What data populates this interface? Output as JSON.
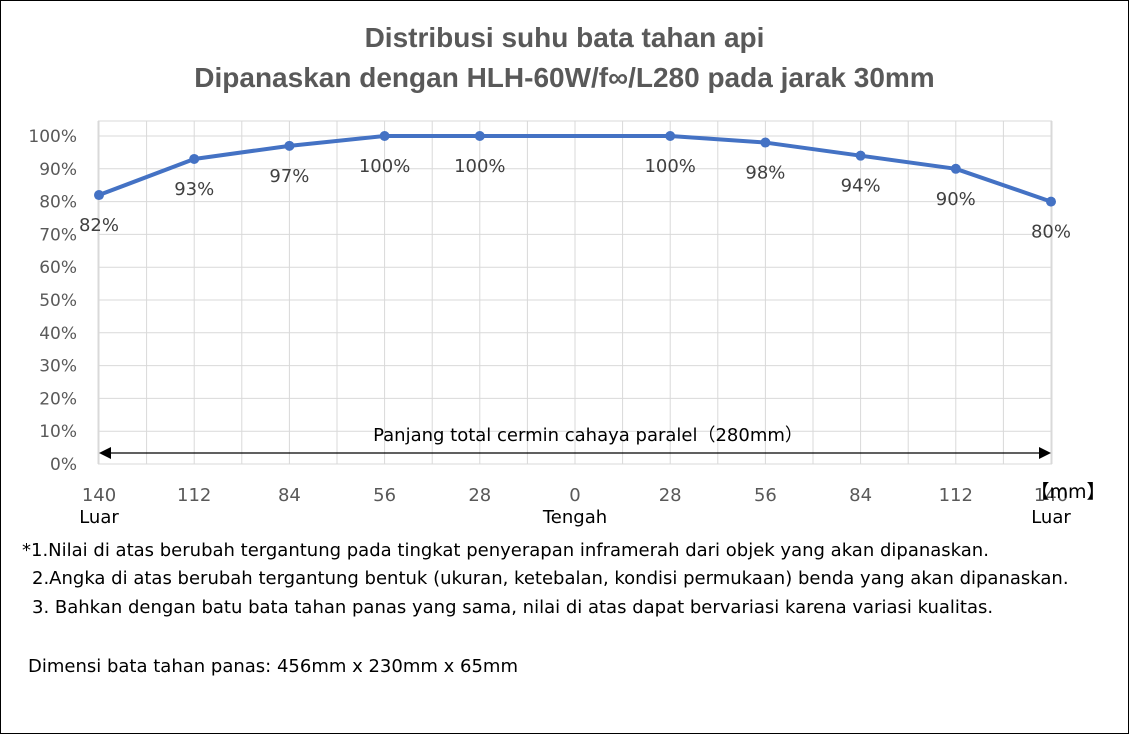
{
  "chart_data": {
    "type": "line",
    "title": "Distribusi suhu bata tahan api",
    "subtitle": "Dipanaskan dengan HLH-60W/f∞/L280 pada jarak 30mm",
    "x_ticks": [
      "140",
      "112",
      "84",
      "56",
      "28",
      "0",
      "28",
      "56",
      "84",
      "112",
      "140"
    ],
    "x_sublabels": [
      {
        "tick_index": 0,
        "text": "Luar"
      },
      {
        "tick_index": 5,
        "text": "Tengah"
      },
      {
        "tick_index": 10,
        "text": "Luar"
      }
    ],
    "x_unit": "【mm】",
    "y_ticks": [
      "0%",
      "10%",
      "20%",
      "30%",
      "40%",
      "50%",
      "60%",
      "70%",
      "80%",
      "90%",
      "100%"
    ],
    "ylim": [
      0,
      100
    ],
    "grid": true,
    "series": [
      {
        "x": [
          -140,
          -112,
          -84,
          -56,
          -28,
          28,
          56,
          84,
          112,
          140
        ],
        "values": [
          82,
          93,
          97,
          100,
          100,
          100,
          98,
          94,
          90,
          80
        ],
        "labels": [
          "82%",
          "93%",
          "97%",
          "100%",
          "100%",
          "100%",
          "98%",
          "94%",
          "90%",
          "80%"
        ],
        "color": "#4472C4"
      }
    ],
    "annotation": "Panjang total cermin cahaya paralel（280mm）"
  },
  "notes": [
    "*1.Nilai di atas berubah tergantung pada tingkat penyerapan inframerah dari objek yang akan dipanaskan.",
    "2.Angka di atas berubah tergantung bentuk (ukuran, ketebalan, kondisi permukaan) benda yang akan dipanaskan.",
    "3. Bahkan dengan batu bata tahan panas yang sama, nilai di atas dapat bervariasi karena variasi kualitas."
  ],
  "dimensions": "Dimensi bata tahan panas: 456mm x 230mm x 65mm",
  "colors": {
    "line": "#4472C4",
    "grid": "#D9D9D9",
    "title": "#595959"
  }
}
